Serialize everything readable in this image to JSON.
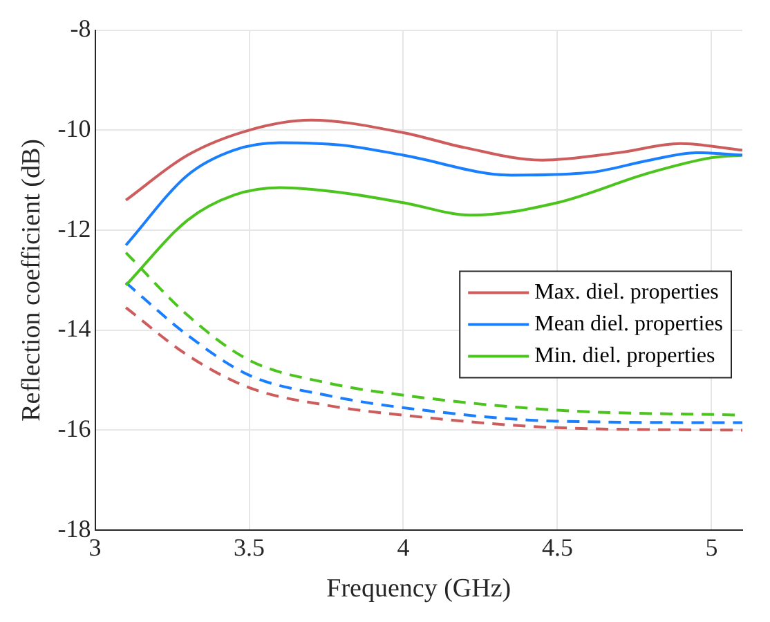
{
  "chart_data": {
    "type": "line",
    "xlabel": "Frequency (GHz)",
    "ylabel": "Reflection coefficient (dB)",
    "xlim": [
      3,
      5.1
    ],
    "xticks": [
      3,
      3.5,
      4,
      4.5,
      5
    ],
    "ylim": [
      -18,
      -8
    ],
    "yticks": [
      -18,
      -16,
      -14,
      -12,
      -10,
      -8
    ],
    "grid": true,
    "legend": "right",
    "marker": "none",
    "series": [
      {
        "name": "Max. diel. properties",
        "color": "#cd5c5c",
        "line_style": "solid",
        "x": [
          3.1,
          3.3,
          3.5,
          3.7,
          4.0,
          4.2,
          4.45,
          4.7,
          4.9,
          5.1
        ],
        "values": [
          -11.4,
          -10.5,
          -10.0,
          -9.8,
          -10.05,
          -10.35,
          -10.6,
          -10.45,
          -10.27,
          -10.4
        ]
      },
      {
        "name": "Mean diel. properties",
        "color": "#1a7fff",
        "line_style": "solid",
        "x": [
          3.1,
          3.3,
          3.45,
          3.6,
          3.8,
          4.0,
          4.35,
          4.6,
          4.8,
          4.95,
          5.1
        ],
        "values": [
          -12.3,
          -10.9,
          -10.4,
          -10.25,
          -10.3,
          -10.5,
          -10.9,
          -10.85,
          -10.6,
          -10.45,
          -10.5
        ]
      },
      {
        "name": "Min. diel. properties",
        "color": "#4cc41e",
        "line_style": "solid",
        "x": [
          3.1,
          3.3,
          3.45,
          3.6,
          3.8,
          4.0,
          4.22,
          4.5,
          4.8,
          5.0,
          5.1
        ],
        "values": [
          -13.1,
          -11.8,
          -11.3,
          -11.15,
          -11.25,
          -11.45,
          -11.7,
          -11.45,
          -10.85,
          -10.55,
          -10.5
        ]
      },
      {
        "color": "#cd5c5c",
        "line_style": "dashed",
        "x": [
          3.1,
          3.3,
          3.5,
          3.75,
          4.0,
          4.5,
          5.1
        ],
        "values": [
          -13.55,
          -14.5,
          -15.15,
          -15.5,
          -15.7,
          -15.95,
          -16.0
        ]
      },
      {
        "color": "#1a7fff",
        "line_style": "dashed",
        "x": [
          3.1,
          3.3,
          3.5,
          3.75,
          4.0,
          4.5,
          5.1
        ],
        "values": [
          -13.05,
          -14.1,
          -14.9,
          -15.3,
          -15.55,
          -15.82,
          -15.85
        ]
      },
      {
        "color": "#4cc41e",
        "line_style": "dashed",
        "x": [
          3.1,
          3.3,
          3.5,
          3.75,
          4.0,
          4.5,
          5.1
        ],
        "values": [
          -12.45,
          -13.7,
          -14.6,
          -15.05,
          -15.3,
          -15.6,
          -15.7
        ]
      }
    ]
  }
}
